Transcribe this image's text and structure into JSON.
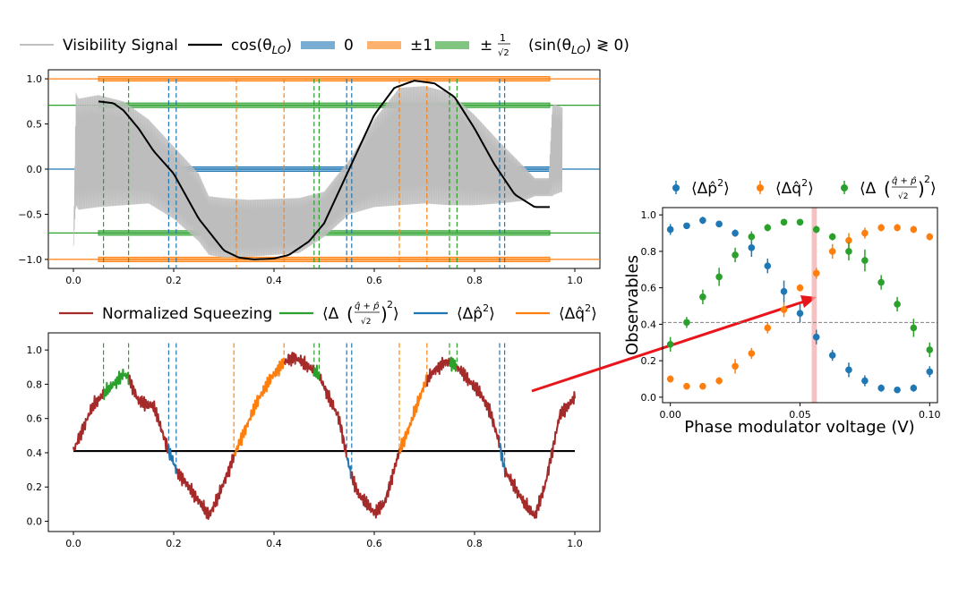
{
  "chart_data": [
    {
      "type": "line",
      "panel": "top-left",
      "legend_position": "top",
      "legend": [
        {
          "key": "visibility",
          "label": "Visibility Signal",
          "color": "#c0c0c0"
        },
        {
          "key": "cos",
          "label": "cos(θ",
          "sub": "LO",
          "tail": ")",
          "color": "#000000"
        },
        {
          "key": "band0",
          "label": "0",
          "color": "#1f77b4"
        },
        {
          "key": "band1",
          "label": "±1",
          "color": "#ff7f0e"
        },
        {
          "key": "bandr2",
          "label": "±",
          "color": "#2ca02c"
        }
      ],
      "legend_condition": {
        "label": "(sin(θ",
        "sub": "LO",
        "tail": ") ≷ 0)"
      },
      "xlim": [
        -0.05,
        1.05
      ],
      "ylim": [
        -1.1,
        1.1
      ],
      "xticks": [
        "0.0",
        "0.2",
        "0.4",
        "0.6",
        "0.8",
        "1.0"
      ],
      "xtick_values": [
        0,
        0.2,
        0.4,
        0.6,
        0.8,
        1.0
      ],
      "yticks": [
        "−1.0",
        "−0.5",
        "0.0",
        "0.5",
        "1.0"
      ],
      "ytick_values": [
        -1,
        -0.5,
        0,
        0.5,
        1
      ],
      "hlines": [
        {
          "y": 1.0,
          "color": "#ff7f0e"
        },
        {
          "y": -1.0,
          "color": "#ff7f0e"
        },
        {
          "y": 0.0,
          "color": "#1f77b4"
        },
        {
          "y": 0.707,
          "color": "#2ca02c"
        },
        {
          "y": -0.707,
          "color": "#2ca02c"
        }
      ],
      "bands": [
        {
          "y": 1.0,
          "x0": 0.05,
          "x1": 0.95,
          "color": "#ff7f0e"
        },
        {
          "y": -1.0,
          "x0": 0.05,
          "x1": 0.95,
          "color": "#ff7f0e"
        },
        {
          "y": 0.0,
          "x0": 0.05,
          "x1": 0.95,
          "color": "#1f77b4"
        },
        {
          "y": 0.707,
          "x0": 0.05,
          "x1": 0.95,
          "color": "#2ca02c"
        },
        {
          "y": -0.707,
          "x0": 0.05,
          "x1": 0.95,
          "color": "#2ca02c"
        }
      ],
      "vlines": [
        {
          "x": 0.06,
          "color": "#2ca02c"
        },
        {
          "x": 0.11,
          "color": "#2ca02c"
        },
        {
          "x": 0.19,
          "color": "#1f77b4"
        },
        {
          "x": 0.205,
          "color": "#1f77b4"
        },
        {
          "x": 0.325,
          "color": "#ff7f0e"
        },
        {
          "x": 0.42,
          "color": "#ff7f0e"
        },
        {
          "x": 0.48,
          "color": "#2ca02c"
        },
        {
          "x": 0.49,
          "color": "#2ca02c"
        },
        {
          "x": 0.545,
          "color": "#1f77b4"
        },
        {
          "x": 0.555,
          "color": "#1f77b4"
        },
        {
          "x": 0.65,
          "color": "#ff7f0e"
        },
        {
          "x": 0.705,
          "color": "#ff7f0e"
        },
        {
          "x": 0.75,
          "color": "#2ca02c"
        },
        {
          "x": 0.765,
          "color": "#2ca02c"
        },
        {
          "x": 0.85,
          "color": "#1f77b4"
        },
        {
          "x": 0.86,
          "color": "#1f77b4"
        }
      ],
      "visibility_envelope": {
        "x": [
          0.0,
          0.005,
          0.01,
          0.05,
          0.1,
          0.15,
          0.2,
          0.25,
          0.27,
          0.3,
          0.35,
          0.4,
          0.45,
          0.5,
          0.55,
          0.6,
          0.65,
          0.7,
          0.75,
          0.8,
          0.85,
          0.9,
          0.92,
          0.948,
          0.955,
          0.96,
          0.975
        ],
        "upper": [
          -0.85,
          0.85,
          0.78,
          0.82,
          0.75,
          0.55,
          0.25,
          -0.05,
          -0.3,
          -0.32,
          -0.34,
          -0.33,
          -0.32,
          -0.25,
          0.1,
          0.55,
          0.9,
          0.92,
          0.85,
          0.6,
          0.3,
          0.02,
          -0.1,
          -0.1,
          0.7,
          0.72,
          0.68
        ],
        "lower": [
          -0.85,
          -0.4,
          -0.45,
          -0.42,
          -0.4,
          -0.38,
          -0.55,
          -0.8,
          -0.95,
          -0.98,
          -0.97,
          -0.95,
          -0.93,
          -0.75,
          -0.5,
          -0.42,
          -0.4,
          -0.38,
          -0.4,
          -0.4,
          -0.38,
          -0.35,
          -0.3,
          -0.3,
          -0.3,
          -0.28,
          -0.25
        ]
      },
      "cos_curve": {
        "x": [
          0.05,
          0.08,
          0.1,
          0.13,
          0.16,
          0.2,
          0.25,
          0.3,
          0.33,
          0.36,
          0.4,
          0.43,
          0.47,
          0.5,
          0.55,
          0.6,
          0.64,
          0.68,
          0.72,
          0.76,
          0.8,
          0.84,
          0.88,
          0.92,
          0.95
        ],
        "y": [
          0.75,
          0.73,
          0.65,
          0.45,
          0.2,
          -0.05,
          -0.55,
          -0.9,
          -0.98,
          -1.0,
          -0.99,
          -0.95,
          -0.8,
          -0.6,
          0.0,
          0.6,
          0.9,
          0.98,
          0.95,
          0.8,
          0.45,
          0.05,
          -0.28,
          -0.42,
          -0.42
        ]
      }
    },
    {
      "type": "line",
      "panel": "bottom-left",
      "legend_position": "top",
      "legend": [
        {
          "key": "squeeze",
          "label": "Normalized Squeezing",
          "color": "#a52a2a"
        },
        {
          "key": "qp",
          "label": "⟨Δ",
          "color": "#2ca02c"
        },
        {
          "key": "p",
          "label": "⟨Δp̂",
          "sup": "2",
          "tail": "⟩",
          "color": "#1f77b4"
        },
        {
          "key": "q",
          "label": "⟨Δq̂",
          "sup": "2",
          "tail": "⟩",
          "color": "#ff7f0e"
        }
      ],
      "xlim": [
        -0.05,
        1.05
      ],
      "ylim": [
        -0.06,
        1.1
      ],
      "xticks": [
        "0.0",
        "0.2",
        "0.4",
        "0.6",
        "0.8",
        "1.0"
      ],
      "xtick_values": [
        0,
        0.2,
        0.4,
        0.6,
        0.8,
        1.0
      ],
      "yticks": [
        "0.0",
        "0.2",
        "0.4",
        "0.6",
        "0.8",
        "1.0"
      ],
      "ytick_values": [
        0,
        0.2,
        0.4,
        0.6,
        0.8,
        1.0
      ],
      "hline": {
        "y": 0.41,
        "x0": 0.0,
        "x1": 1.0,
        "color": "#000000"
      },
      "vlines": [
        {
          "x": 0.06,
          "y1": 1.04,
          "color": "#2ca02c"
        },
        {
          "x": 0.11,
          "y1": 1.04,
          "color": "#2ca02c"
        },
        {
          "x": 0.19,
          "y1": 1.04,
          "color": "#1f77b4"
        },
        {
          "x": 0.205,
          "y1": 1.04,
          "color": "#1f77b4"
        },
        {
          "x": 0.32,
          "y1": 1.04,
          "color": "#ff7f0e"
        },
        {
          "x": 0.42,
          "y1": 1.04,
          "color": "#ff7f0e"
        },
        {
          "x": 0.48,
          "y1": 1.04,
          "color": "#2ca02c"
        },
        {
          "x": 0.49,
          "y1": 1.04,
          "color": "#2ca02c"
        },
        {
          "x": 0.545,
          "y1": 1.04,
          "color": "#1f77b4"
        },
        {
          "x": 0.555,
          "y1": 1.04,
          "color": "#1f77b4"
        },
        {
          "x": 0.65,
          "y1": 1.04,
          "color": "#ff7f0e"
        },
        {
          "x": 0.705,
          "y1": 1.04,
          "color": "#ff7f0e"
        },
        {
          "x": 0.75,
          "y1": 1.04,
          "color": "#2ca02c"
        },
        {
          "x": 0.765,
          "y1": 1.04,
          "color": "#2ca02c"
        },
        {
          "x": 0.85,
          "y1": 1.04,
          "color": "#1f77b4"
        },
        {
          "x": 0.86,
          "y1": 1.04,
          "color": "#1f77b4"
        }
      ],
      "squeeze_curve": {
        "x": [
          0.0,
          0.02,
          0.04,
          0.06,
          0.08,
          0.1,
          0.11,
          0.13,
          0.16,
          0.19,
          0.2,
          0.205,
          0.23,
          0.25,
          0.27,
          0.29,
          0.31,
          0.32,
          0.34,
          0.37,
          0.4,
          0.42,
          0.44,
          0.47,
          0.49,
          0.51,
          0.53,
          0.545,
          0.555,
          0.57,
          0.6,
          0.62,
          0.65,
          0.67,
          0.7,
          0.72,
          0.74,
          0.76,
          0.78,
          0.81,
          0.83,
          0.85,
          0.86,
          0.88,
          0.9,
          0.92,
          0.94,
          0.97,
          1.0
        ],
        "y": [
          0.41,
          0.55,
          0.68,
          0.74,
          0.8,
          0.86,
          0.84,
          0.7,
          0.67,
          0.41,
          0.34,
          0.3,
          0.2,
          0.12,
          0.03,
          0.15,
          0.3,
          0.38,
          0.52,
          0.72,
          0.86,
          0.93,
          0.96,
          0.9,
          0.85,
          0.72,
          0.6,
          0.38,
          0.26,
          0.15,
          0.05,
          0.1,
          0.41,
          0.55,
          0.8,
          0.88,
          0.93,
          0.92,
          0.85,
          0.75,
          0.65,
          0.45,
          0.3,
          0.2,
          0.1,
          0.03,
          0.2,
          0.62,
          0.72
        ]
      },
      "segments": [
        {
          "from": 0.06,
          "to": 0.11,
          "color": "#2ca02c"
        },
        {
          "from": 0.19,
          "to": 0.205,
          "color": "#1f77b4"
        },
        {
          "from": 0.32,
          "to": 0.42,
          "color": "#ff7f0e"
        },
        {
          "from": 0.48,
          "to": 0.49,
          "color": "#2ca02c"
        },
        {
          "from": 0.545,
          "to": 0.555,
          "color": "#1f77b4"
        },
        {
          "from": 0.65,
          "to": 0.705,
          "color": "#ff7f0e"
        },
        {
          "from": 0.75,
          "to": 0.765,
          "color": "#2ca02c"
        },
        {
          "from": 0.85,
          "to": 0.86,
          "color": "#1f77b4"
        }
      ]
    },
    {
      "type": "scatter",
      "panel": "right",
      "legend_position": "top",
      "legend": [
        {
          "key": "p",
          "label": "⟨Δp̂",
          "sup": "2",
          "tail": "⟩",
          "color": "#1f77b4"
        },
        {
          "key": "q",
          "label": "⟨Δq̂",
          "sup": "2",
          "tail": "⟩",
          "color": "#ff7f0e"
        },
        {
          "key": "qp",
          "label": "⟨Δ",
          "color": "#2ca02c"
        }
      ],
      "xlabel": "Phase modulator voltage (V)",
      "ylabel": "Observables",
      "xlim": [
        -0.003,
        0.103
      ],
      "ylim": [
        -0.03,
        1.04
      ],
      "xticks": [
        "0.00",
        "0.05",
        "0.10"
      ],
      "xtick_values": [
        0,
        0.05,
        0.1
      ],
      "yticks": [
        "0.0",
        "0.2",
        "0.4",
        "0.6",
        "0.8",
        "1.0"
      ],
      "ytick_values": [
        0,
        0.2,
        0.4,
        0.6,
        0.8,
        1.0
      ],
      "hline": {
        "y": 0.41,
        "style": "dashed",
        "color": "#808080"
      },
      "highlight_span": {
        "x0": 0.0545,
        "x1": 0.0565,
        "color": "#f4a6a6"
      },
      "x": [
        0.0,
        0.0063,
        0.0125,
        0.0188,
        0.025,
        0.0313,
        0.0375,
        0.0438,
        0.05,
        0.0563,
        0.0625,
        0.0688,
        0.075,
        0.0813,
        0.0875,
        0.0938,
        0.1
      ],
      "series": [
        {
          "name": "⟨Δp̂²⟩",
          "color": "#1f77b4",
          "y": [
            0.92,
            0.94,
            0.97,
            0.95,
            0.9,
            0.82,
            0.72,
            0.58,
            0.46,
            0.33,
            0.23,
            0.15,
            0.09,
            0.05,
            0.04,
            0.05,
            0.14
          ],
          "err": [
            0.03,
            0.015,
            0.02,
            0.015,
            0.02,
            0.05,
            0.04,
            0.06,
            0.05,
            0.04,
            0.03,
            0.04,
            0.03,
            0.02,
            0.01,
            0.02,
            0.03
          ]
        },
        {
          "name": "⟨Δq̂²⟩",
          "color": "#ff7f0e",
          "y": [
            0.1,
            0.06,
            0.06,
            0.09,
            0.17,
            0.24,
            0.38,
            0.48,
            0.6,
            0.68,
            0.8,
            0.86,
            0.9,
            0.93,
            0.93,
            0.92,
            0.88
          ],
          "err": [
            0.02,
            0.015,
            0.015,
            0.02,
            0.04,
            0.03,
            0.03,
            0.04,
            0.02,
            0.03,
            0.04,
            0.04,
            0.03,
            0.02,
            0.02,
            0.02,
            0.02
          ]
        },
        {
          "name": "⟨Δ((q̂+p̂)/√2)²⟩",
          "color": "#2ca02c",
          "y": [
            0.29,
            0.41,
            0.55,
            0.66,
            0.78,
            0.88,
            0.93,
            0.96,
            0.96,
            0.92,
            0.88,
            0.8,
            0.75,
            0.63,
            0.51,
            0.38,
            0.26
          ],
          "err": [
            0.04,
            0.03,
            0.04,
            0.05,
            0.04,
            0.03,
            0.02,
            0.015,
            0.015,
            0.02,
            0.02,
            0.05,
            0.06,
            0.04,
            0.04,
            0.05,
            0.04
          ]
        }
      ]
    }
  ]
}
